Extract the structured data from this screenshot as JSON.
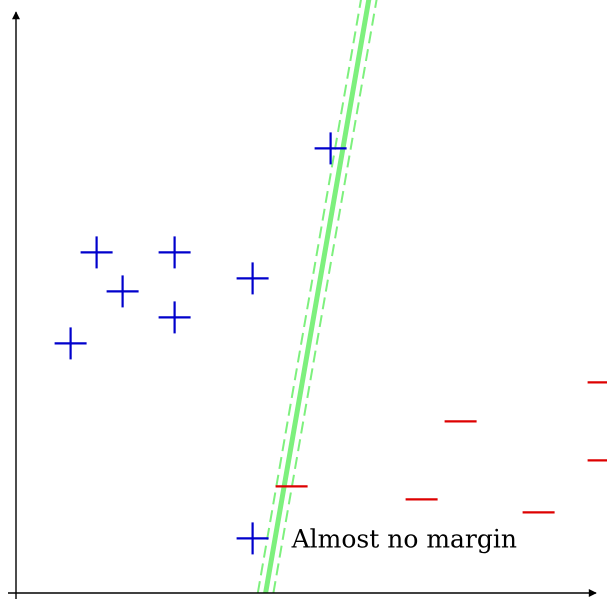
{
  "figure": {
    "annotation": "Almost no margin",
    "positive_symbol": "+",
    "negative_symbol": "−"
  },
  "colors": {
    "axis": "#000000",
    "positive": "#0000cc",
    "negative": "#dd0000",
    "boundary": "#7df07d",
    "background": "#ffffff"
  },
  "chart_data": {
    "type": "scatter",
    "title": "",
    "xlabel": "",
    "ylabel": "",
    "grid": false,
    "series": [
      {
        "class": "positive",
        "points": [
          [
            3.1,
            13.1
          ],
          [
            6.1,
            13.1
          ],
          [
            4.1,
            11.6
          ],
          [
            9.1,
            12.1
          ],
          [
            6.1,
            10.6
          ],
          [
            2.1,
            9.6
          ],
          [
            12.1,
            17.1
          ],
          [
            9.1,
            2.1
          ]
        ]
      },
      {
        "class": "negative",
        "points": [
          [
            10.6,
            4.1
          ],
          [
            17.1,
            6.6
          ],
          [
            15.6,
            3.6
          ],
          [
            22.6,
            8.1
          ],
          [
            22.6,
            5.1
          ],
          [
            20.1,
            3.1
          ]
        ]
      }
    ],
    "decision_boundary": {
      "from": [
        9.6,
        0
      ],
      "to": [
        13.6,
        23
      ],
      "style": "solid"
    },
    "margin_lines": [
      {
        "from": [
          9.3,
          0
        ],
        "to": [
          13.3,
          23
        ],
        "style": "dashed"
      },
      {
        "from": [
          9.9,
          0
        ],
        "to": [
          13.9,
          23
        ],
        "style": "dashed"
      }
    ],
    "annotation_anchor": [
      10.6,
      2.1
    ]
  }
}
